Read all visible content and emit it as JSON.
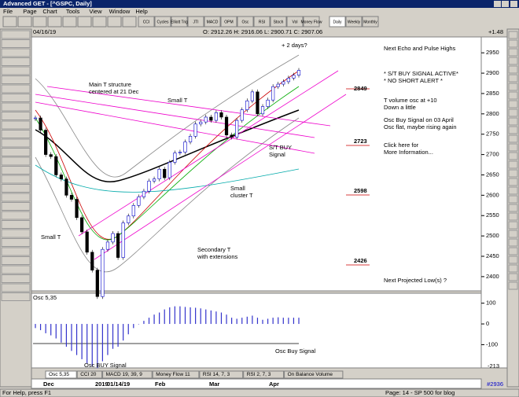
{
  "window": {
    "title": "Advanced GET - [^GSPC, Daily]"
  },
  "menu": [
    "File",
    "Page",
    "Chart",
    "Tools",
    "View",
    "Window",
    "Help"
  ],
  "toolbar": [
    "CCI",
    "Cycles",
    "Elliott Trig",
    "JTI",
    "MACD",
    "OPM",
    "Osc",
    "RSI",
    "Stoch",
    "Vol",
    "Money Flow",
    "Daily",
    "Weekly",
    "Monthly"
  ],
  "info": {
    "date": "04/16/19",
    "ohlc": "O: 2912.26   H: 2916.06   L: 2900.71   C: 2907.06",
    "change": "+1.48"
  },
  "chart_data": {
    "type": "candlestick",
    "title": "^GSPC, Daily",
    "values": [
      2790,
      2760,
      2700,
      2695,
      2650,
      2640,
      2600,
      2590,
      2545,
      2510,
      2460,
      2416,
      2351,
      2467,
      2485,
      2506,
      2447,
      2532,
      2549,
      2575,
      2596,
      2610,
      2635,
      2640,
      2664,
      2643,
      2681,
      2704,
      2706,
      2731,
      2745,
      2775,
      2780,
      2792,
      2784,
      2803,
      2792,
      2748,
      2743,
      2784,
      2810,
      2832,
      2854,
      2800,
      2818,
      2834,
      2867,
      2873,
      2879,
      2888,
      2895,
      2907
    ],
    "ylim": [
      2365,
      2989
    ],
    "yticks": [
      2400,
      2450,
      2500,
      2550,
      2600,
      2650,
      2700,
      2750,
      2800,
      2850,
      2900,
      2950
    ]
  },
  "annotations": [
    "+ 2 days?",
    "Next Echo and Pulse Highs",
    "* S/T BUY SIGNAL ACTIVE*",
    "* NO SHORT ALERT *",
    "2849",
    "T volume osc at +10",
    "Down a little",
    "Osc Buy Signal on 03 April",
    "Osc flat, maybe rising again",
    "2723",
    "Click here for",
    "More Information...",
    "2598",
    "2426",
    "Next Projected Low(s) ?",
    "Main T structure",
    "centered at 21 Dec",
    "Small T",
    "S/T BUY",
    "Signal",
    "Small",
    "cluster T",
    "Secondary T",
    "with extensions",
    "Small T"
  ],
  "oscillator": {
    "name": "Osc 5,35",
    "values": [
      -20,
      -30,
      -45,
      -55,
      -70,
      -90,
      -110,
      -130,
      -150,
      -170,
      -190,
      -205,
      -213,
      -180,
      -150,
      -120,
      -110,
      -80,
      -50,
      -20,
      0,
      15,
      30,
      45,
      55,
      70,
      80,
      85,
      85,
      82,
      80,
      78,
      75,
      70,
      65,
      60,
      55,
      45,
      30,
      25,
      30,
      35,
      40,
      30,
      20,
      25,
      30,
      32,
      30,
      30,
      30,
      30
    ],
    "ylim": [
      -212,
      148
    ],
    "yticks": [
      -100,
      0,
      100
    ],
    "readout": "-213",
    "annotations": [
      "Osc BUY Signal",
      "Osc Buy Signal"
    ]
  },
  "tabs": [
    "Osc 5,35",
    "CCI 20",
    "MACD 19, 39, 9",
    "Money Flow 11",
    "RSI 14, 7, 3",
    "RSI 2, 7, 3",
    "On Balance Volume"
  ],
  "dates": [
    "Dec",
    "2019",
    "01/14/19",
    "Feb",
    "Mar",
    "Apr"
  ],
  "bar_number": "#2936",
  "status": {
    "help": "For Help, press F1",
    "page": "Page: 14 - SP 500 for blog"
  }
}
